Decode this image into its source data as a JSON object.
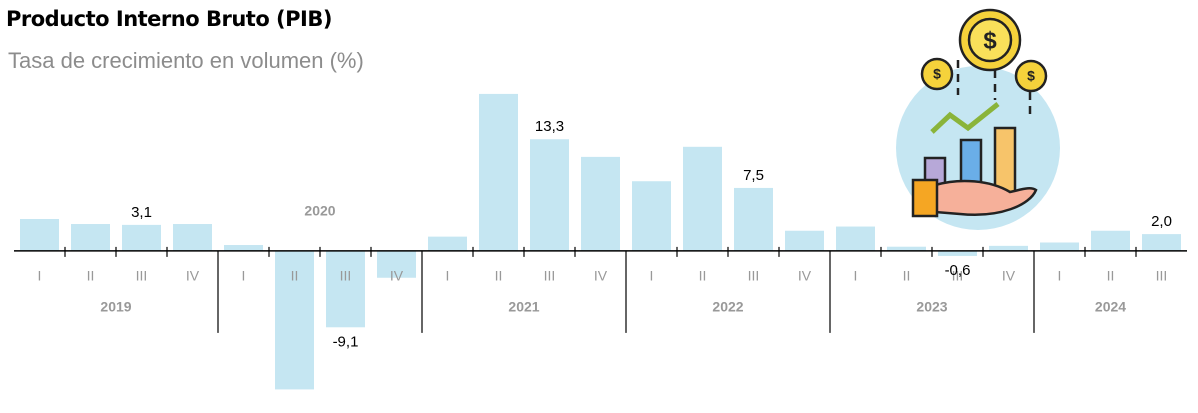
{
  "chart_data": {
    "type": "bar",
    "title": "Producto Interno Bruto (PIB)",
    "subtitle": "Tasa de crecimiento en volumen (%)",
    "categories": [
      "I",
      "II",
      "III",
      "IV",
      "I",
      "II",
      "III",
      "IV",
      "I",
      "II",
      "III",
      "IV",
      "I",
      "II",
      "III",
      "IV",
      "I",
      "II",
      "III",
      "IV",
      "I",
      "II",
      "III"
    ],
    "groups": [
      "2019",
      "2020",
      "2021",
      "2022",
      "2023",
      "2024"
    ],
    "values": [
      3.8,
      3.2,
      3.1,
      3.2,
      0.7,
      -16.5,
      -9.1,
      -3.2,
      1.7,
      18.7,
      13.3,
      11.2,
      8.3,
      12.4,
      7.5,
      2.4,
      2.9,
      0.5,
      -0.6,
      0.6,
      1.0,
      2.4,
      2.0
    ],
    "value_labels": [
      null,
      null,
      "3,1",
      null,
      null,
      null,
      "-9,1",
      null,
      null,
      null,
      "13,3",
      null,
      null,
      null,
      "7,5",
      null,
      null,
      null,
      "-0,6",
      null,
      null,
      null,
      "2,0"
    ],
    "color": "#c5e6f2",
    "ylim": [
      -18,
      20
    ]
  }
}
